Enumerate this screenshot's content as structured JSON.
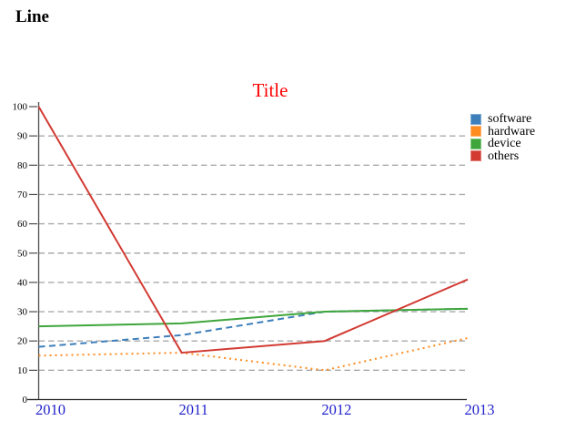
{
  "page": {
    "heading": "Line"
  },
  "colors": {
    "title": "#ff0000",
    "x_axis_labels": "#2222cc",
    "y_axis_labels": "#000000",
    "axis_line": "#4d4d4d",
    "gridline": "#aaaaaa"
  },
  "chart_data": {
    "type": "line",
    "title": "Title",
    "categories": [
      "2010",
      "2011",
      "2012",
      "2013"
    ],
    "series": [
      {
        "name": "software",
        "color": "#3d7ebb",
        "style": "dashed",
        "values": [
          18,
          22,
          30,
          31
        ]
      },
      {
        "name": "hardware",
        "color": "#ff8c21",
        "style": "dotted",
        "values": [
          15,
          16,
          10,
          21
        ]
      },
      {
        "name": "device",
        "color": "#3fa63c",
        "style": "solid",
        "values": [
          25,
          26,
          30,
          31
        ]
      },
      {
        "name": "others",
        "color": "#d23a32",
        "style": "solid",
        "values": [
          100,
          16,
          20,
          41
        ]
      }
    ],
    "xlabel": "",
    "ylabel": "",
    "ylim": [
      0,
      100
    ],
    "ytick_step": 10,
    "grid": "horizontal-dashed",
    "legend_position": "top-right"
  }
}
